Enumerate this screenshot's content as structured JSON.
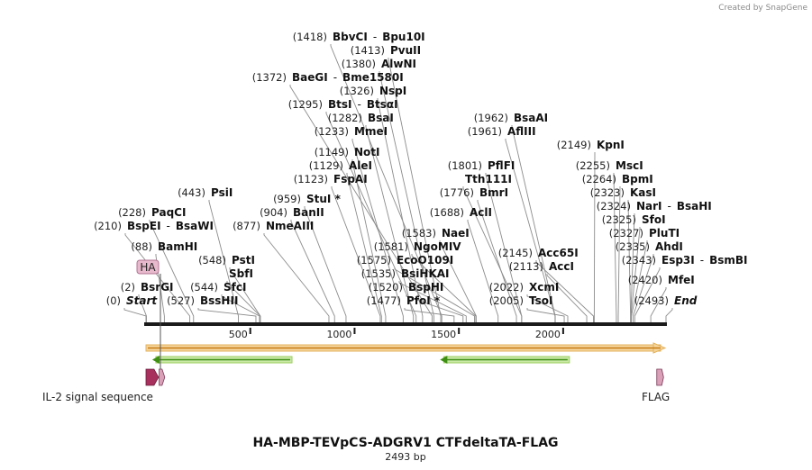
{
  "credit": "Created by SnapGene",
  "title": "HA-MBP-TEVpCS-ADGRV1 CTFdeltaTA-FLAG",
  "length_label": "2493 bp",
  "sequence_length": 2493,
  "ruler_ticks": [
    {
      "value": 500,
      "label": "500"
    },
    {
      "value": 1000,
      "label": "1000"
    },
    {
      "value": 1500,
      "label": "1500"
    },
    {
      "value": 2000,
      "label": "2000"
    }
  ],
  "sites": [
    {
      "id": "start",
      "pos": "(0)",
      "name": "Start",
      "name2": "",
      "bp": 0,
      "italic": true
    },
    {
      "id": "bsrgi",
      "pos": "(2)",
      "name": "BsrGI",
      "name2": "",
      "bp": 2
    },
    {
      "id": "bamhi",
      "pos": "(88)",
      "name": "BamHI",
      "name2": "",
      "bp": 88
    },
    {
      "id": "bspei",
      "pos": "(210)",
      "name": "BspEI",
      "name2": "BsaWI",
      "bp": 210
    },
    {
      "id": "paqci",
      "pos": "(228)",
      "name": "PaqCI",
      "name2": "",
      "bp": 228
    },
    {
      "id": "psii",
      "pos": "(443)",
      "name": "PsiI",
      "name2": "",
      "bp": 443
    },
    {
      "id": "bsshii",
      "pos": "(527)",
      "name": "BssHII",
      "name2": "",
      "bp": 527
    },
    {
      "id": "sfci",
      "pos": "(544)",
      "name": "SfcI",
      "name2": "",
      "bp": 544
    },
    {
      "id": "sbfi",
      "pos": "",
      "name": "SbfI",
      "name2": "",
      "bp": 548
    },
    {
      "id": "psti",
      "pos": "(548)",
      "name": "PstI",
      "name2": "",
      "bp": 548
    },
    {
      "id": "nmeaiii",
      "pos": "(877)",
      "name": "NmeAIII",
      "name2": "",
      "bp": 877
    },
    {
      "id": "banii",
      "pos": "(904)",
      "name": "BanII",
      "name2": "",
      "bp": 904
    },
    {
      "id": "stui",
      "pos": "(959)",
      "name": "StuI *",
      "name2": "",
      "bp": 959
    },
    {
      "id": "fspai",
      "pos": "(1123)",
      "name": "FspAI",
      "name2": "",
      "bp": 1123
    },
    {
      "id": "alei",
      "pos": "(1129)",
      "name": "AleI",
      "name2": "",
      "bp": 1129
    },
    {
      "id": "noti",
      "pos": "(1149)",
      "name": "NotI",
      "name2": "",
      "bp": 1149
    },
    {
      "id": "mmei",
      "pos": "(1233)",
      "name": "MmeI",
      "name2": "",
      "bp": 1233
    },
    {
      "id": "bsai",
      "pos": "(1282)",
      "name": "BsaI",
      "name2": "",
      "bp": 1282
    },
    {
      "id": "btsi",
      "pos": "(1295)",
      "name": "BtsI",
      "name2": "BtsαI",
      "bp": 1295
    },
    {
      "id": "nspi",
      "pos": "(1326)",
      "name": "NspI",
      "name2": "",
      "bp": 1326
    },
    {
      "id": "baegi",
      "pos": "(1372)",
      "name": "BaeGI",
      "name2": "Bme1580I",
      "bp": 1372
    },
    {
      "id": "alwni",
      "pos": "(1380)",
      "name": "AlwNI",
      "name2": "",
      "bp": 1380
    },
    {
      "id": "pvuii",
      "pos": "(1413)",
      "name": "PvuII",
      "name2": "",
      "bp": 1413
    },
    {
      "id": "bbvci",
      "pos": "(1418)",
      "name": "BbvCI",
      "name2": "Bpu10I",
      "bp": 1418
    },
    {
      "id": "pfoi",
      "pos": "(1477)",
      "name": "PfoI *",
      "name2": "",
      "bp": 1477
    },
    {
      "id": "bsphi",
      "pos": "(1520)",
      "name": "BspHI",
      "name2": "",
      "bp": 1520
    },
    {
      "id": "bsihkai",
      "pos": "(1535)",
      "name": "BsiHKAI",
      "name2": "",
      "bp": 1535
    },
    {
      "id": "ecoo109i",
      "pos": "(1575)",
      "name": "EcoO109I",
      "name2": "",
      "bp": 1575
    },
    {
      "id": "ngomiv",
      "pos": "(1581)",
      "name": "NgoMIV",
      "name2": "",
      "bp": 1581
    },
    {
      "id": "naei",
      "pos": "(1583)",
      "name": "NaeI",
      "name2": "",
      "bp": 1583
    },
    {
      "id": "acli",
      "pos": "(1688)",
      "name": "AclI",
      "name2": "",
      "bp": 1688
    },
    {
      "id": "bmri",
      "pos": "(1776)",
      "name": "BmrI",
      "name2": "",
      "bp": 1776
    },
    {
      "id": "tth111i",
      "pos": "",
      "name": "Tth111I",
      "name2": "",
      "bp": 1801
    },
    {
      "id": "pflfi",
      "pos": "(1801)",
      "name": "PflFI",
      "name2": "",
      "bp": 1801
    },
    {
      "id": "afliii",
      "pos": "(1961)",
      "name": "AflIII",
      "name2": "",
      "bp": 1961
    },
    {
      "id": "bsaai",
      "pos": "(1962)",
      "name": "BsaAI",
      "name2": "",
      "bp": 1962
    },
    {
      "id": "tsoi",
      "pos": "(2005)",
      "name": "TsoI",
      "name2": "",
      "bp": 2005
    },
    {
      "id": "xcmi",
      "pos": "(2022)",
      "name": "XcmI",
      "name2": "",
      "bp": 2022
    },
    {
      "id": "acci",
      "pos": "(2113)",
      "name": "AccI",
      "name2": "",
      "bp": 2113
    },
    {
      "id": "acc65i",
      "pos": "(2145)",
      "name": "Acc65I",
      "name2": "",
      "bp": 2145
    },
    {
      "id": "kpni",
      "pos": "(2149)",
      "name": "KpnI",
      "name2": "",
      "bp": 2149
    },
    {
      "id": "msci",
      "pos": "(2255)",
      "name": "MscI",
      "name2": "",
      "bp": 2255
    },
    {
      "id": "bpmi",
      "pos": "(2264)",
      "name": "BpmI",
      "name2": "",
      "bp": 2264
    },
    {
      "id": "kasi",
      "pos": "(2323)",
      "name": "KasI",
      "name2": "",
      "bp": 2323
    },
    {
      "id": "nari",
      "pos": "(2324)",
      "name": "NarI",
      "name2": "BsaHI",
      "bp": 2324
    },
    {
      "id": "sfoi",
      "pos": "(2325)",
      "name": "SfoI",
      "name2": "",
      "bp": 2325
    },
    {
      "id": "pluti",
      "pos": "(2327)",
      "name": "PluTI",
      "name2": "",
      "bp": 2327
    },
    {
      "id": "ahdi",
      "pos": "(2335)",
      "name": "AhdI",
      "name2": "",
      "bp": 2335
    },
    {
      "id": "esp3i",
      "pos": "(2343)",
      "name": "Esp3I",
      "name2": "BsmBI",
      "bp": 2343
    },
    {
      "id": "mfei",
      "pos": "(2420)",
      "name": "MfeI",
      "name2": "",
      "bp": 2420
    },
    {
      "id": "end",
      "pos": "(2493)",
      "name": "End",
      "name2": "",
      "bp": 2493,
      "italic": true
    }
  ],
  "features": [
    {
      "id": "orf",
      "label": "",
      "start": 0,
      "end": 2493,
      "direction": "forward",
      "color": "#f2c884"
    },
    {
      "id": "orf-rev-1",
      "label": "",
      "start": 30,
      "end": 700,
      "direction": "reverse",
      "color": "#7fc241"
    },
    {
      "id": "orf-rev-2",
      "label": "",
      "start": 1410,
      "end": 2030,
      "direction": "reverse",
      "color": "#7fc241"
    },
    {
      "id": "il2",
      "label": "IL-2 signal sequence",
      "start": 0,
      "end": 60,
      "direction": "forward",
      "color": "#a8305c"
    },
    {
      "id": "ha",
      "label": "HA",
      "start": 63,
      "end": 90,
      "direction": "forward",
      "color": "#d9a0b8"
    },
    {
      "id": "flag",
      "label": "FLAG",
      "start": 2466,
      "end": 2490,
      "direction": "forward",
      "color": "#d9a0b8"
    }
  ]
}
